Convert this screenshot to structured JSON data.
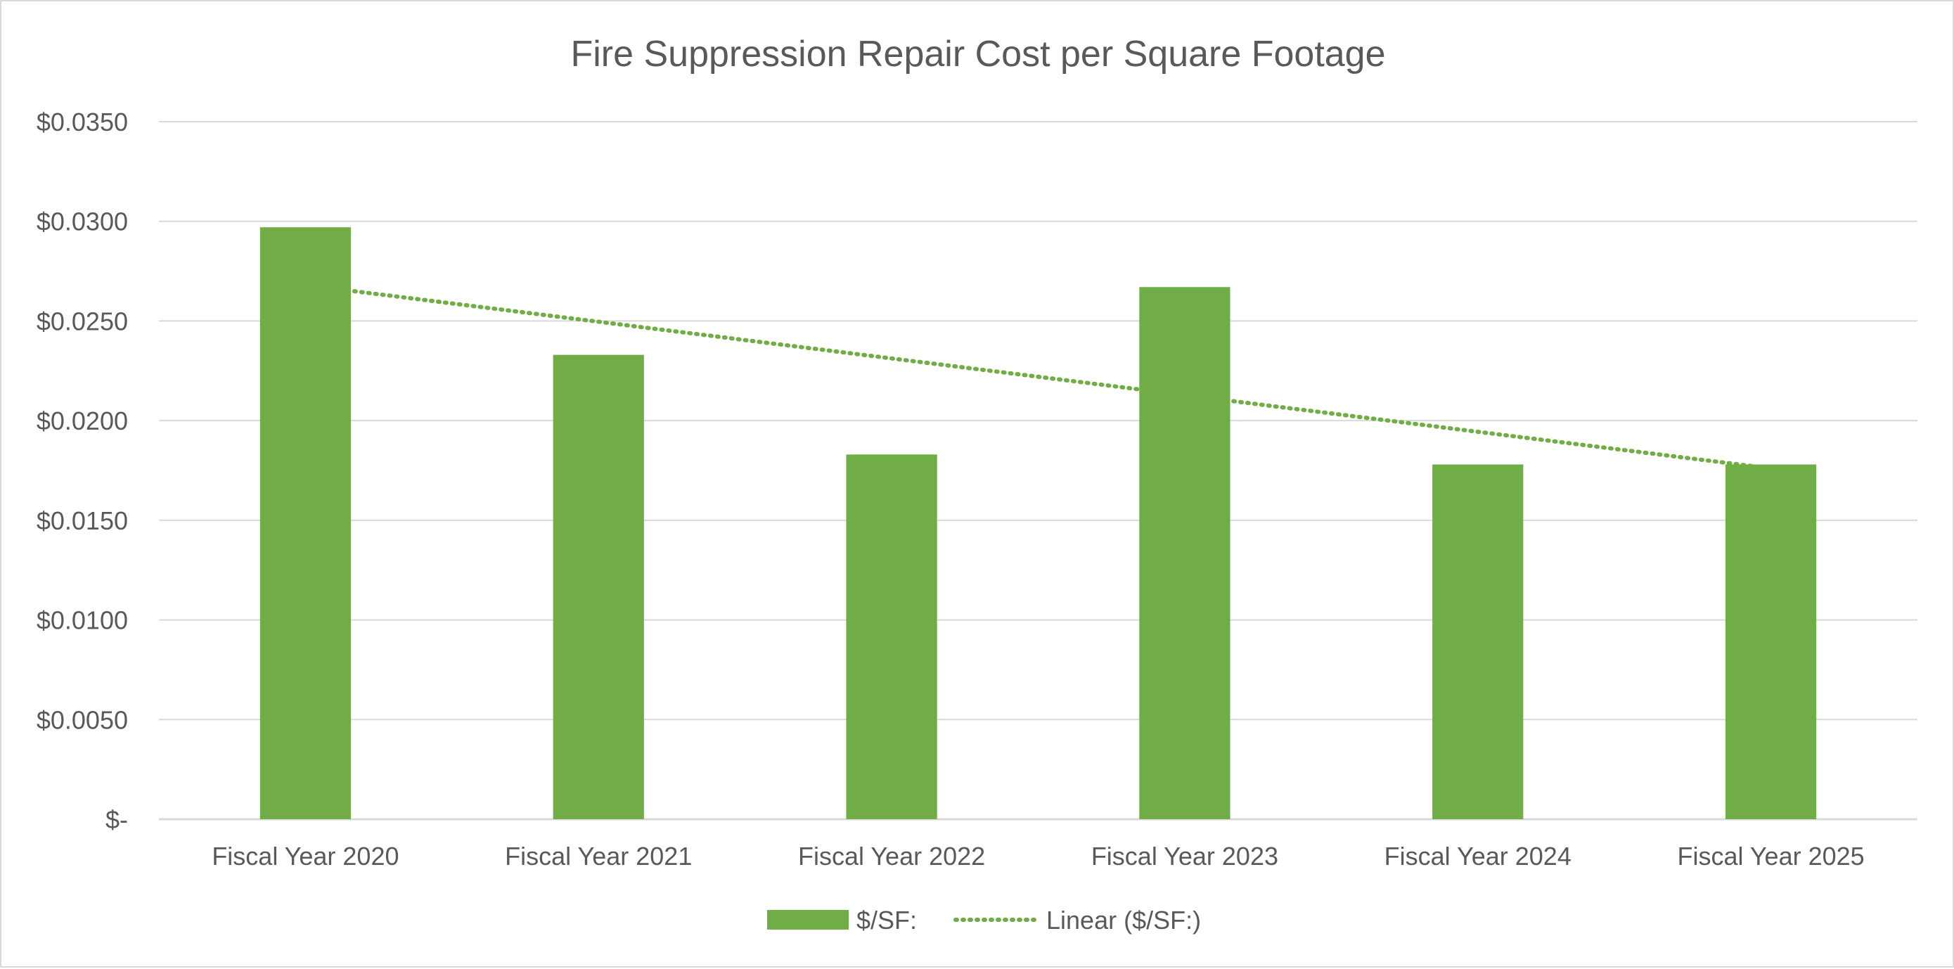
{
  "chart_data": {
    "type": "bar",
    "title": "Fire Suppression Repair Cost per Square Footage",
    "xlabel": "",
    "ylabel": "",
    "categories": [
      "Fiscal Year 2020",
      "Fiscal Year 2021",
      "Fiscal Year 2022",
      "Fiscal Year 2023",
      "Fiscal Year 2024",
      "Fiscal Year 2025"
    ],
    "series": [
      {
        "name": "$/SF:",
        "values": [
          0.0297,
          0.0233,
          0.0183,
          0.0267,
          0.0178,
          0.0178
        ],
        "color": "#70ad47"
      }
    ],
    "trendline": {
      "name": "Linear ($/SF:)",
      "type": "linear",
      "start_value": 0.0268,
      "end_value": 0.0176,
      "color": "#70ad47",
      "style": "dotted"
    },
    "ylim": [
      0,
      0.035
    ],
    "yticks": [
      0,
      0.005,
      0.01,
      0.015,
      0.02,
      0.025,
      0.03,
      0.035
    ],
    "ytick_labels": [
      "$-",
      "$0.0050",
      "$0.0100",
      "$0.0150",
      "$0.0200",
      "$0.0250",
      "$0.0300",
      "$0.0350"
    ],
    "grid": true,
    "legend_position": "bottom",
    "colors": {
      "bar": "#70ad47",
      "grid": "#d9d9d9",
      "text": "#595959",
      "border": "#d9d9d9"
    }
  }
}
